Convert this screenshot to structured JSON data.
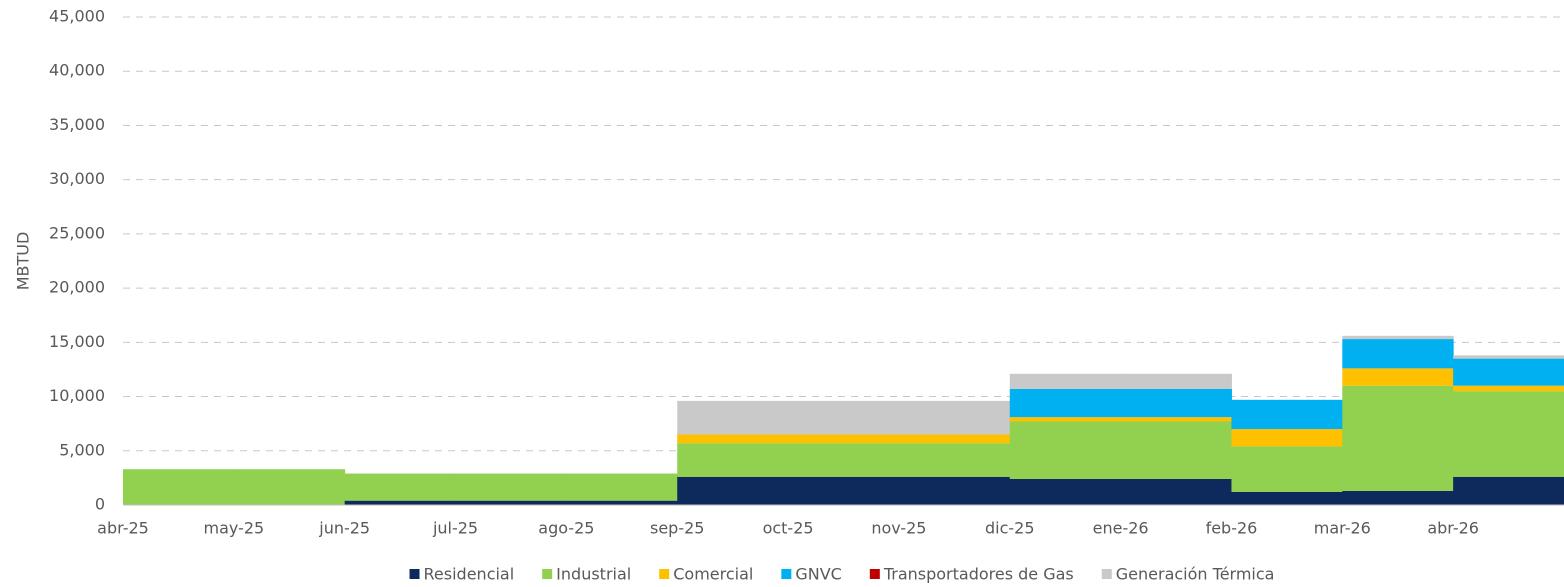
{
  "chart_data": {
    "type": "stacked_area",
    "y_label": "MBTUD",
    "categories": [
      "abr-25",
      "may-25",
      "jun-25",
      "jul-25",
      "ago-25",
      "sep-25",
      "oct-25",
      "nov-25",
      "dic-25",
      "ene-26",
      "feb-26",
      "mar-26",
      "abr-26"
    ],
    "series": [
      {
        "name": "Residencial",
        "color": "#0e2a5c",
        "values": [
          0,
          0,
          400,
          400,
          400,
          2600,
          2600,
          2600,
          2400,
          2400,
          1200,
          1300,
          2600
        ]
      },
      {
        "name": "Industrial",
        "color": "#92d050",
        "values": [
          3300,
          3300,
          2500,
          2500,
          2500,
          3100,
          3100,
          3100,
          5300,
          5300,
          4200,
          9700,
          7900
        ]
      },
      {
        "name": "Comercial",
        "color": "#ffc000",
        "values": [
          0,
          0,
          0,
          0,
          0,
          800,
          800,
          800,
          400,
          400,
          1600,
          1600,
          500
        ]
      },
      {
        "name": "GNVC",
        "color": "#00b0f0",
        "values": [
          0,
          0,
          0,
          0,
          0,
          0,
          0,
          0,
          2600,
          2600,
          2700,
          2700,
          2500
        ]
      },
      {
        "name": "Transportadores de Gas",
        "color": "#c00000",
        "values": [
          0,
          0,
          0,
          0,
          0,
          0,
          0,
          0,
          0,
          0,
          0,
          0,
          0
        ]
      },
      {
        "name": "Generación Térmica",
        "color": "#c9c9c9",
        "values": [
          0,
          0,
          0,
          0,
          0,
          3100,
          3100,
          3100,
          1400,
          1400,
          0,
          300,
          300
        ]
      }
    ],
    "ylim": [
      0,
      45000
    ],
    "yticks": [
      0,
      {
        "value": 5000,
        "label": "5,000"
      },
      {
        "value": 10000,
        "label": "10,000"
      },
      {
        "value": 15000,
        "label": "15,000"
      },
      {
        "value": 20000,
        "label": "20,000"
      },
      {
        "value": 25000,
        "label": "25,000"
      },
      {
        "value": 30000,
        "label": "30,000"
      },
      {
        "value": 35000,
        "label": "35,000"
      },
      {
        "value": 40000,
        "label": "40,000"
      },
      {
        "value": 45000,
        "label": "45,000"
      }
    ],
    "grid": true,
    "legend": "bottom"
  }
}
